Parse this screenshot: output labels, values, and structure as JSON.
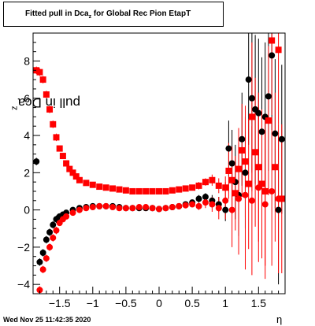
{
  "title_main": "Fitted pull in Dca",
  "title_sub": "z",
  "title_rest": " for Global Rec Pion EtapT",
  "ylabel": "pull in Dca",
  "ylabel_sub": "z",
  "xlabel": "η",
  "footer_date": "Wed Nov 25 11:42:35 2020",
  "colors": {
    "series_black": "#000000",
    "series_red": "#ff0000",
    "axis": "#000000"
  },
  "chart_data": {
    "type": "scatter",
    "title": "Fitted pull in Dcaz for Global Rec Pion EtapT",
    "xlabel": "η",
    "ylabel": "pull in Dcaz",
    "xlim": [
      -1.9,
      1.9
    ],
    "ylim": [
      -4.5,
      9.5
    ],
    "xticks": [
      -1.5,
      -1,
      -0.5,
      0,
      0.5,
      1,
      1.5
    ],
    "yticks": [
      -4,
      -2,
      0,
      2,
      4,
      6,
      8
    ],
    "grid": false,
    "series": [
      {
        "color": "black",
        "marker": "circle",
        "x": [
          -1.85,
          -1.8,
          -1.75,
          -1.7,
          -1.65,
          -1.6,
          -1.55,
          -1.5,
          -1.45,
          -1.4,
          -1.3,
          -1.2,
          -1.1,
          -1.0,
          -0.9,
          -0.8,
          -0.7,
          -0.6,
          -0.5,
          -0.4,
          -0.3,
          -0.2,
          -0.1,
          0.0,
          0.1,
          0.2,
          0.3,
          0.4,
          0.5,
          0.6,
          0.7,
          0.8,
          0.9,
          1.0,
          1.05,
          1.1,
          1.15,
          1.2,
          1.25,
          1.3,
          1.35,
          1.4,
          1.45,
          1.5,
          1.55,
          1.6,
          1.65,
          1.7,
          1.75,
          1.8,
          1.85
        ],
        "y": [
          2.6,
          -2.8,
          -2.3,
          -1.6,
          -1.2,
          -0.8,
          -0.5,
          -0.35,
          -0.25,
          -0.15,
          0.0,
          0.1,
          0.15,
          0.2,
          0.2,
          0.2,
          0.2,
          0.15,
          0.1,
          0.1,
          0.1,
          0.1,
          0.1,
          0.05,
          0.1,
          0.15,
          0.2,
          0.3,
          0.4,
          0.6,
          0.7,
          0.5,
          0.3,
          0.0,
          3.3,
          2.5,
          1.5,
          0.8,
          3.8,
          2.0,
          7.0,
          6.0,
          5.4,
          5.2,
          4.2,
          5.0,
          6.1,
          8.3,
          4.1,
          0.0,
          3.8
        ],
        "yerr": [
          0.2,
          0.2,
          0.2,
          0.2,
          0.2,
          0.2,
          0.2,
          0.1,
          0.1,
          0.1,
          0.1,
          0.1,
          0.1,
          0.1,
          0.1,
          0.1,
          0.1,
          0.1,
          0.1,
          0.1,
          0.1,
          0.1,
          0.1,
          0.1,
          0.1,
          0.1,
          0.1,
          0.1,
          0.1,
          0.2,
          0.2,
          0.3,
          0.4,
          0.6,
          1.5,
          1.8,
          2.0,
          2.2,
          2.5,
          3.0,
          3.5,
          4.0,
          4.0,
          4.0,
          4.0,
          4.0,
          4.0,
          4.0,
          4.0,
          4.0,
          4.0
        ]
      },
      {
        "color": "red",
        "marker": "square",
        "x": [
          -1.85,
          -1.8,
          -1.75,
          -1.7,
          -1.65,
          -1.6,
          -1.55,
          -1.5,
          -1.45,
          -1.4,
          -1.35,
          -1.3,
          -1.25,
          -1.2,
          -1.1,
          -1.0,
          -0.9,
          -0.8,
          -0.7,
          -0.6,
          -0.5,
          -0.4,
          -0.3,
          -0.2,
          -0.1,
          0.0,
          0.1,
          0.2,
          0.3,
          0.4,
          0.5,
          0.6,
          0.7,
          0.8,
          0.9,
          1.0,
          1.05,
          1.1,
          1.15,
          1.2,
          1.25,
          1.3,
          1.35,
          1.4,
          1.45,
          1.5,
          1.55,
          1.6,
          1.65,
          1.7,
          1.75,
          1.8,
          1.85
        ],
        "y": [
          7.5,
          7.4,
          7.0,
          6.2,
          5.4,
          4.6,
          3.9,
          3.3,
          2.9,
          2.5,
          2.2,
          2.0,
          1.8,
          1.6,
          1.45,
          1.35,
          1.25,
          1.2,
          1.15,
          1.1,
          1.05,
          1.0,
          1.0,
          1.0,
          1.0,
          1.0,
          1.0,
          1.05,
          1.1,
          1.15,
          1.2,
          1.3,
          1.5,
          1.6,
          1.3,
          1.2,
          2.1,
          1.6,
          0.9,
          2.2,
          3.2,
          2.6,
          1.4,
          5.0,
          3.1,
          2.3,
          1.4,
          1.0,
          4.8,
          9.1,
          2.3,
          8.6,
          0.6
        ],
        "yerr": [
          0.2,
          0.2,
          0.2,
          0.2,
          0.2,
          0.2,
          0.2,
          0.1,
          0.1,
          0.1,
          0.1,
          0.1,
          0.1,
          0.1,
          0.1,
          0.1,
          0.1,
          0.1,
          0.1,
          0.1,
          0.1,
          0.1,
          0.1,
          0.1,
          0.1,
          0.1,
          0.1,
          0.1,
          0.1,
          0.1,
          0.1,
          0.2,
          0.2,
          0.3,
          0.4,
          0.6,
          1.5,
          1.8,
          2.0,
          2.2,
          2.5,
          3.0,
          3.5,
          4.0,
          4.0,
          4.0,
          4.0,
          4.0,
          4.0,
          4.0,
          4.0,
          4.0,
          4.0
        ]
      },
      {
        "color": "red",
        "marker": "circle",
        "x": [
          -1.8,
          -1.75,
          -1.7,
          -1.65,
          -1.6,
          -1.55,
          -1.5,
          -1.45,
          -1.4,
          -1.3,
          -1.2,
          -1.1,
          -1.0,
          -0.9,
          -0.8,
          -0.7,
          -0.6,
          -0.5,
          -0.4,
          -0.3,
          -0.2,
          -0.1,
          0.0,
          0.1,
          0.2,
          0.3,
          0.4,
          0.5,
          0.6,
          0.7,
          0.8,
          0.9,
          1.0,
          1.1,
          1.2,
          1.3,
          1.4,
          1.5,
          1.6,
          1.7,
          1.8
        ],
        "y": [
          -4.3,
          -3.2,
          -2.6,
          -2.0,
          -1.5,
          -1.1,
          -0.7,
          -0.5,
          -0.35,
          -0.15,
          0.0,
          0.1,
          0.15,
          0.2,
          0.2,
          0.15,
          0.1,
          0.1,
          0.1,
          0.15,
          0.15,
          0.1,
          0.05,
          0.1,
          0.15,
          0.2,
          0.25,
          0.3,
          0.2,
          0.4,
          0.3,
          0.1,
          0.5,
          0.0,
          0.6,
          0.8,
          0.5,
          1.2,
          0.3,
          1.0,
          0.6
        ],
        "yerr": [
          0.2,
          0.2,
          0.2,
          0.2,
          0.2,
          0.2,
          0.1,
          0.1,
          0.1,
          0.1,
          0.1,
          0.1,
          0.1,
          0.1,
          0.1,
          0.1,
          0.1,
          0.1,
          0.1,
          0.1,
          0.1,
          0.1,
          0.1,
          0.1,
          0.1,
          0.1,
          0.1,
          0.1,
          0.2,
          0.3,
          0.4,
          0.6,
          1.0,
          2.0,
          3.0,
          4.0,
          4.0,
          4.0,
          4.0,
          4.0,
          4.0
        ]
      }
    ]
  }
}
